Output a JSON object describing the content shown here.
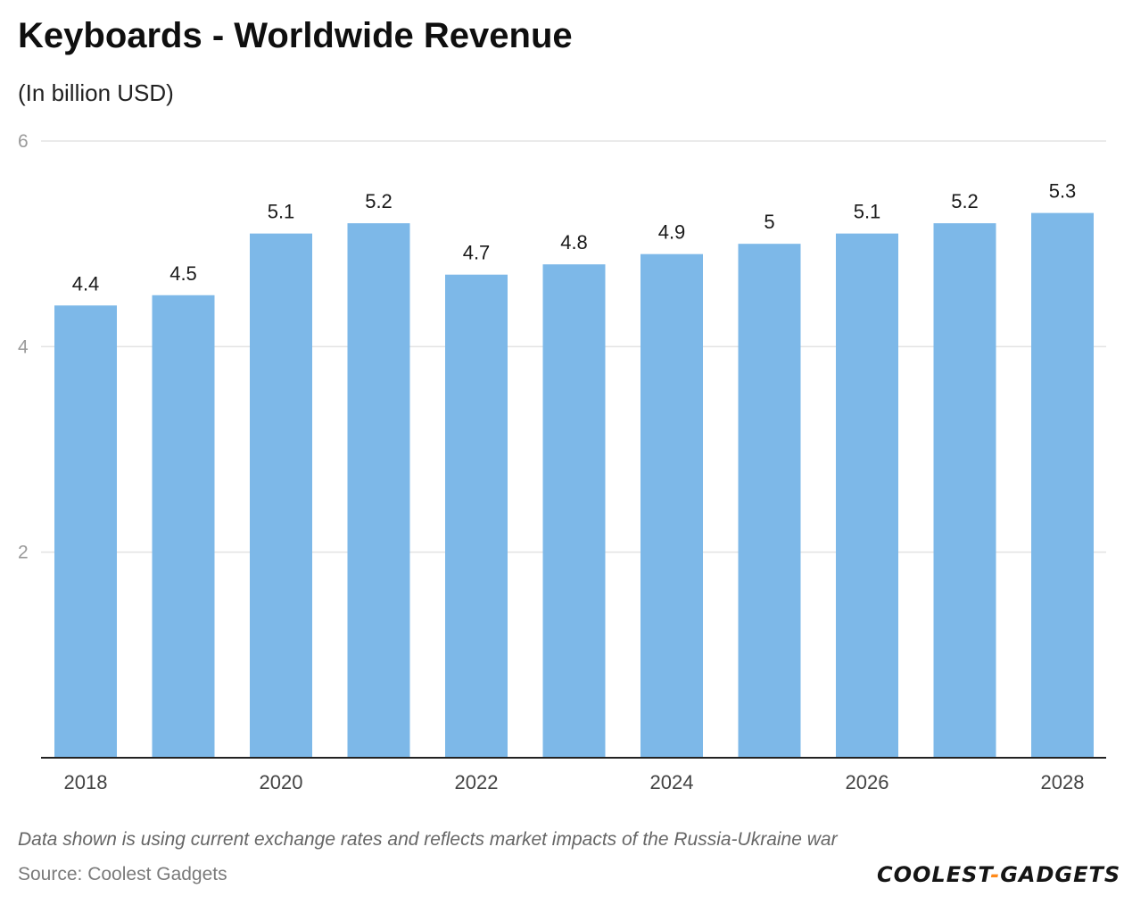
{
  "header": {
    "title": "Keyboards - Worldwide Revenue",
    "subtitle": "(In billion USD)"
  },
  "footer": {
    "note": "Data shown is using current exchange rates and reflects market impacts of the Russia-Ukraine war",
    "source": "Source: Coolest Gadgets",
    "brand_left": "COOLEST",
    "brand_sep": "-",
    "brand_right": "GADGETS"
  },
  "colors": {
    "bar": "#7db8e8",
    "brand_accent": "#ff8a1a",
    "gridline": "#e3e3e3",
    "axis": "#222222"
  },
  "chart_data": {
    "type": "bar",
    "categories": [
      "2018",
      "2019",
      "2020",
      "2021",
      "2022",
      "2023",
      "2024",
      "2025",
      "2026",
      "2027",
      "2028"
    ],
    "values": [
      4.4,
      4.5,
      5.1,
      5.2,
      4.7,
      4.8,
      4.9,
      5,
      5.1,
      5.2,
      5.3
    ],
    "value_labels": [
      "4.4",
      "4.5",
      "5.1",
      "5.2",
      "4.7",
      "4.8",
      "4.9",
      "5",
      "5.1",
      "5.2",
      "5.3"
    ],
    "x_tick_labels": [
      "2018",
      "2020",
      "2022",
      "2024",
      "2026",
      "2028"
    ],
    "y_ticks": [
      2,
      4,
      6
    ],
    "y_tick_labels": [
      "2",
      "4",
      "6"
    ],
    "ylim": [
      0,
      6
    ],
    "grid": true,
    "title": "Keyboards - Worldwide Revenue",
    "ylabel": "(In billion USD)",
    "xlabel": ""
  }
}
